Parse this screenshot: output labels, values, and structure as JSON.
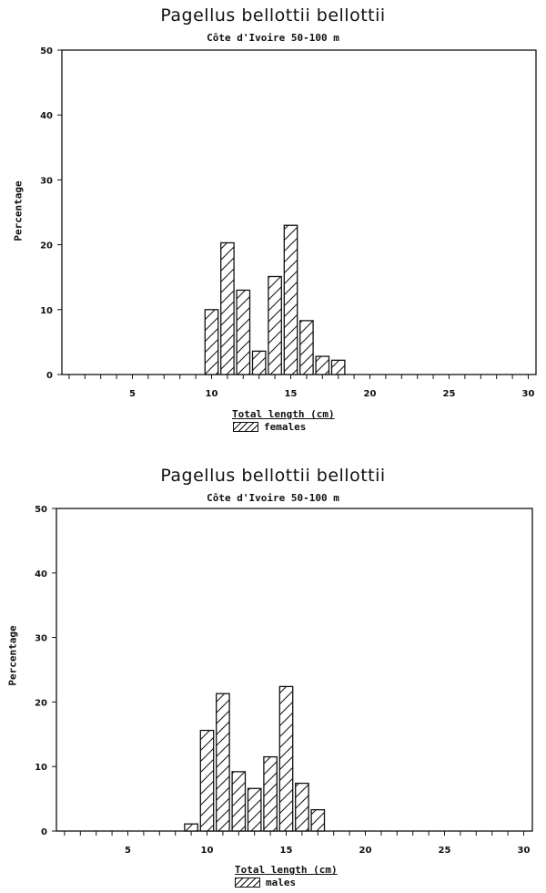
{
  "charts": [
    {
      "title": "Pagellus bellottii bellottii",
      "subtitle": "Côte d'Ivoire  50-100 m",
      "ylabel": "Percentage",
      "xlabel": "Total length (cm)",
      "legend": "females"
    },
    {
      "title": "Pagellus bellottii bellottii",
      "subtitle": "Côte d'Ivoire  50-100 m",
      "ylabel": "Percentage",
      "xlabel": "Total length (cm)",
      "legend": "males"
    }
  ],
  "chart_data": [
    {
      "type": "bar",
      "title": "Pagellus bellottii bellottii",
      "subtitle": "Côte d'Ivoire 50-100 m",
      "xlabel": "Total length (cm)",
      "ylabel": "Percentage",
      "legend": [
        "females"
      ],
      "legend_position": "bottom",
      "grid": false,
      "xlim": [
        0.5,
        30.5
      ],
      "ylim": [
        0,
        50
      ],
      "xticks": [
        5,
        10,
        15,
        20,
        25,
        30
      ],
      "yticks": [
        0,
        10,
        20,
        30,
        40,
        50
      ],
      "pattern": "diagonal-hatch",
      "categories": [
        10,
        11,
        12,
        13,
        14,
        15,
        16,
        17,
        18
      ],
      "values": [
        10.0,
        20.3,
        13.0,
        3.6,
        15.1,
        23.0,
        8.3,
        2.8,
        2.2
      ]
    },
    {
      "type": "bar",
      "title": "Pagellus bellottii bellottii",
      "subtitle": "Côte d'Ivoire 50-100 m",
      "xlabel": "Total length (cm)",
      "ylabel": "Percentage",
      "legend": [
        "males"
      ],
      "legend_position": "bottom",
      "grid": false,
      "xlim": [
        0.5,
        30.5
      ],
      "ylim": [
        0,
        50
      ],
      "xticks": [
        5,
        10,
        15,
        20,
        25,
        30
      ],
      "yticks": [
        0,
        10,
        20,
        30,
        40,
        50
      ],
      "pattern": "diagonal-hatch",
      "categories": [
        9,
        10,
        11,
        12,
        13,
        14,
        15,
        16,
        17
      ],
      "values": [
        1.1,
        15.6,
        21.3,
        9.2,
        6.6,
        11.5,
        22.4,
        7.4,
        3.3
      ]
    }
  ]
}
